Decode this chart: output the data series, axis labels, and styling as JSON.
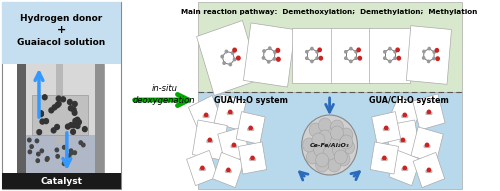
{
  "fig_bg": "#ffffff",
  "reactor_top_bg": "#c5dff0",
  "reactor_body_outer": "#d8d8d8",
  "reactor_body_inner_left": "#b8b8b8",
  "reactor_body_inner_right": "#e8e8e8",
  "reactor_catalyst_bed_bg": "#c8c8c8",
  "reactor_bottom_bg": "#1a1a1a",
  "reactor_liquid_bg": "#b0b8c8",
  "reactor_top_text1": "Hydrogen donor",
  "reactor_top_text2": "+",
  "reactor_top_text3": "Guaiacol solution",
  "reactor_bottom_text": "Catalyst",
  "arrow_text1": "in-situ",
  "arrow_text2": "deoxygenation",
  "arrow_color": "#00aa00",
  "right_top_bg": "#d8e8cc",
  "right_bottom_bg": "#b8d8ec",
  "main_pathway_text": "Main reaction pathway:  Demethoxylation;  Demethylation;  Methylation",
  "gua_h2o_text": "GUA/H₂O system",
  "gua_ch2o_text": "GUA/CH₂O system",
  "catalyst_label": "Ce-Fe/Al₂O₃",
  "blue_arrow_color": "#2a6bbb",
  "card_color": "white",
  "card_edge": "#bbbbbb",
  "mol_gray": "#888888",
  "mol_red": "#cc2222",
  "mol_dark": "#555555"
}
